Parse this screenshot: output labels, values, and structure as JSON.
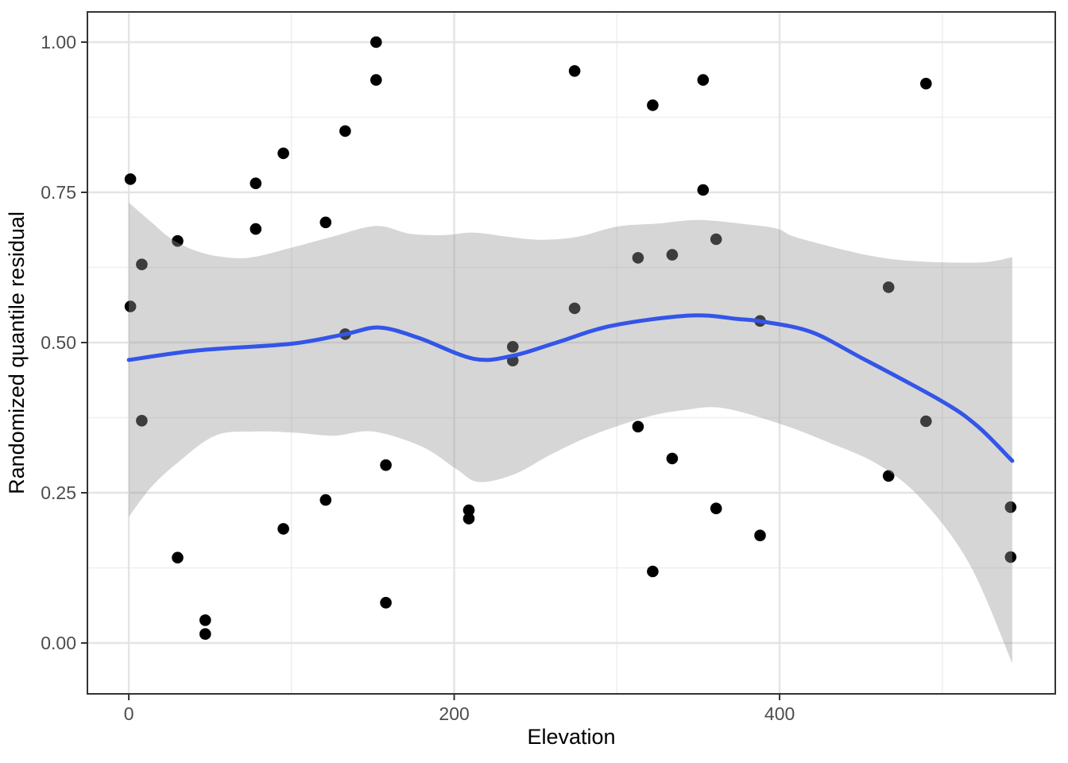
{
  "chart_data": {
    "type": "scatter",
    "title": "",
    "xlabel": "Elevation",
    "ylabel": "Randomized quantile residual",
    "legend": "none",
    "grid": "major+minor",
    "xlim": [
      -25.4,
      569.4
    ],
    "ylim": [
      -0.0847,
      1.0503
    ],
    "x_ticks": [
      0,
      200,
      400
    ],
    "x_tick_labels": [
      "0",
      "200",
      "400"
    ],
    "x_minor_ticks": [
      100,
      300,
      500
    ],
    "y_ticks": [
      0.0,
      0.25,
      0.5,
      0.75,
      1.0
    ],
    "y_tick_labels": [
      "0.00",
      "0.25",
      "0.50",
      "0.75",
      "1.00"
    ],
    "y_minor_ticks": [
      0.125,
      0.375,
      0.625,
      0.875
    ],
    "points": [
      [
        1,
        0.772
      ],
      [
        1,
        0.56
      ],
      [
        8,
        0.63
      ],
      [
        8,
        0.37
      ],
      [
        30,
        0.669
      ],
      [
        30,
        0.142
      ],
      [
        47,
        0.038
      ],
      [
        47,
        0.015
      ],
      [
        78,
        0.765
      ],
      [
        78,
        0.689
      ],
      [
        95,
        0.815
      ],
      [
        95,
        0.19
      ],
      [
        121,
        0.7
      ],
      [
        121,
        0.238
      ],
      [
        133,
        0.852
      ],
      [
        133,
        0.514
      ],
      [
        152,
        1.0
      ],
      [
        152,
        0.937
      ],
      [
        158,
        0.296
      ],
      [
        158,
        0.067
      ],
      [
        209,
        0.221
      ],
      [
        209,
        0.207
      ],
      [
        236,
        0.493
      ],
      [
        236,
        0.47
      ],
      [
        274,
        0.952
      ],
      [
        274,
        0.557
      ],
      [
        313,
        0.641
      ],
      [
        313,
        0.36
      ],
      [
        322,
        0.895
      ],
      [
        322,
        0.119
      ],
      [
        334,
        0.646
      ],
      [
        334,
        0.307
      ],
      [
        353,
        0.937
      ],
      [
        353,
        0.754
      ],
      [
        361,
        0.672
      ],
      [
        361,
        0.224
      ],
      [
        388,
        0.536
      ],
      [
        388,
        0.179
      ],
      [
        467,
        0.592
      ],
      [
        467,
        0.278
      ],
      [
        490,
        0.931
      ],
      [
        490,
        0.369
      ],
      [
        542,
        0.226
      ],
      [
        542,
        0.143
      ]
    ],
    "smooth_line": [
      [
        0,
        0.471
      ],
      [
        43,
        0.487
      ],
      [
        100,
        0.498
      ],
      [
        133,
        0.514
      ],
      [
        154,
        0.525
      ],
      [
        178,
        0.508
      ],
      [
        212,
        0.473
      ],
      [
        236,
        0.478
      ],
      [
        263,
        0.5
      ],
      [
        297,
        0.528
      ],
      [
        345,
        0.545
      ],
      [
        375,
        0.539
      ],
      [
        389,
        0.535
      ],
      [
        419,
        0.518
      ],
      [
        450,
        0.475
      ],
      [
        500,
        0.402
      ],
      [
        522,
        0.36
      ],
      [
        543,
        0.303
      ]
    ],
    "ribbon_upper": [
      [
        0,
        0.733
      ],
      [
        14,
        0.7
      ],
      [
        27,
        0.671
      ],
      [
        43,
        0.651
      ],
      [
        59,
        0.642
      ],
      [
        76,
        0.642
      ],
      [
        100,
        0.658
      ],
      [
        125,
        0.676
      ],
      [
        152,
        0.694
      ],
      [
        173,
        0.681
      ],
      [
        194,
        0.679
      ],
      [
        212,
        0.683
      ],
      [
        233,
        0.676
      ],
      [
        253,
        0.671
      ],
      [
        276,
        0.676
      ],
      [
        300,
        0.693
      ],
      [
        325,
        0.698
      ],
      [
        351,
        0.704
      ],
      [
        382,
        0.696
      ],
      [
        399,
        0.689
      ],
      [
        413,
        0.673
      ],
      [
        466,
        0.64
      ],
      [
        520,
        0.633
      ],
      [
        543,
        0.642
      ]
    ],
    "ribbon_lower": [
      [
        0,
        0.21
      ],
      [
        14,
        0.26
      ],
      [
        30,
        0.3
      ],
      [
        53,
        0.345
      ],
      [
        77,
        0.352
      ],
      [
        102,
        0.35
      ],
      [
        126,
        0.345
      ],
      [
        150,
        0.352
      ],
      [
        180,
        0.327
      ],
      [
        201,
        0.29
      ],
      [
        215,
        0.268
      ],
      [
        237,
        0.281
      ],
      [
        261,
        0.316
      ],
      [
        286,
        0.347
      ],
      [
        318,
        0.376
      ],
      [
        342,
        0.388
      ],
      [
        365,
        0.391
      ],
      [
        400,
        0.365
      ],
      [
        429,
        0.335
      ],
      [
        460,
        0.298
      ],
      [
        487,
        0.24
      ],
      [
        517,
        0.13
      ],
      [
        543,
        -0.034
      ]
    ],
    "colors": {
      "point": "#000000",
      "smooth_line": "#3355E8",
      "ribbon": "#999999",
      "ribbon_opacity": 0.4,
      "grid_major": "#E4E4E4",
      "grid_minor": "#EFEFEF",
      "panel_border": "#333333",
      "tick_mark": "#333333",
      "tick_label": "#4D4D4D",
      "axis_title": "#000000",
      "background": "#FFFFFF"
    }
  }
}
